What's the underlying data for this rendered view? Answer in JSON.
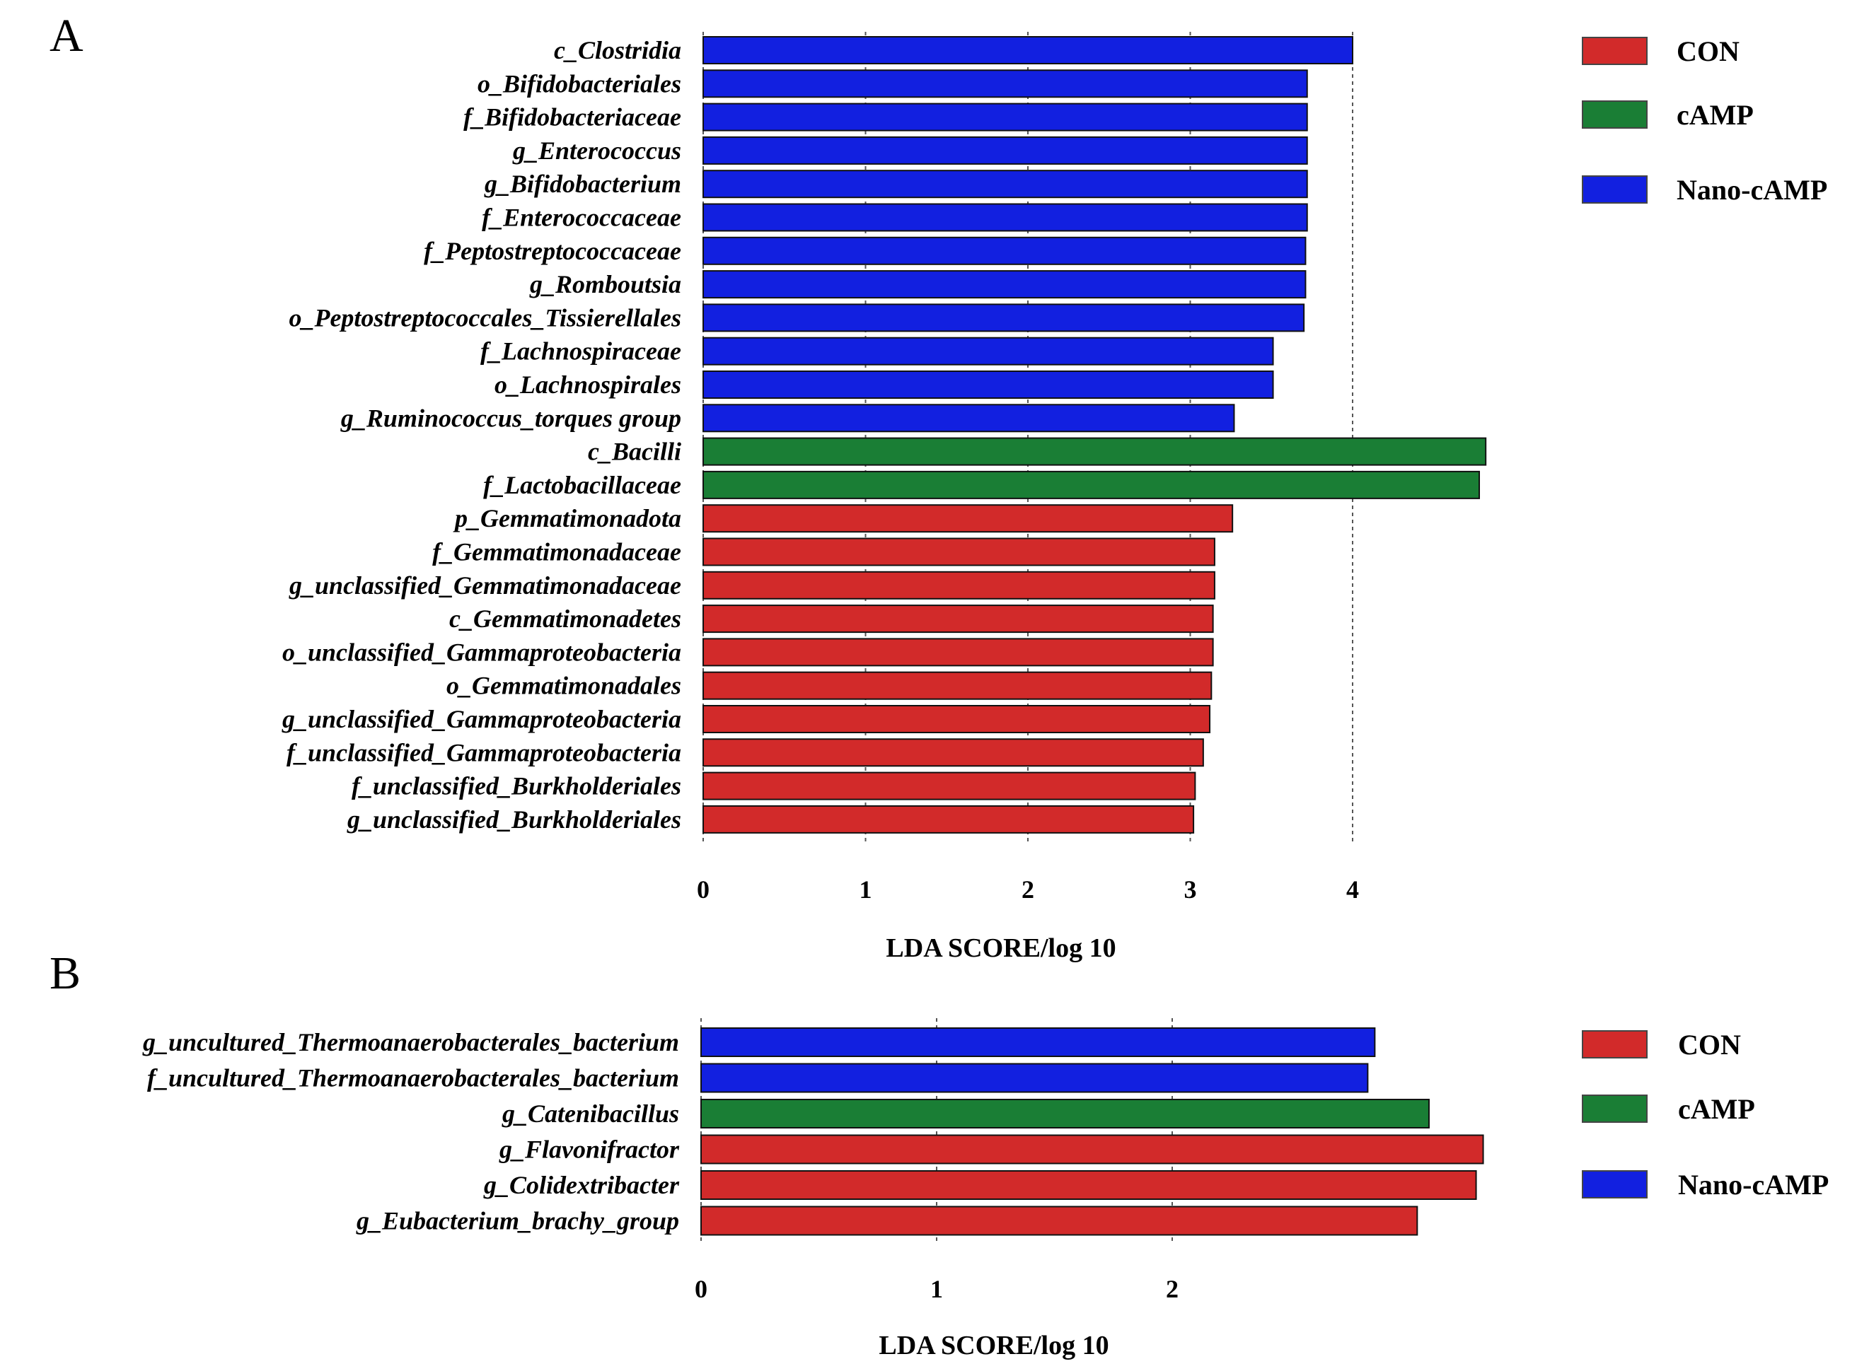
{
  "colors": {
    "CON": "#d22a2a",
    "cAMP": "#1a7e35",
    "Nano-cAMP": "#1220e0"
  },
  "chart_data": [
    {
      "panel": "A",
      "type": "bar",
      "orientation": "horizontal",
      "xlabel": "LDA SCORE/log 10",
      "xticks": [
        "0",
        "1",
        "2",
        "3",
        "4"
      ],
      "xlim": [
        0,
        4.9
      ],
      "legend": [
        {
          "label": "CON",
          "group": "CON"
        },
        {
          "label": "cAMP",
          "group": "cAMP"
        },
        {
          "label": "Nano-cAMP",
          "group": "Nano-cAMP"
        }
      ],
      "bars": [
        {
          "label": "c_Clostridia",
          "value": 4.0,
          "group": "Nano-cAMP"
        },
        {
          "label": "o_Bifidobacteriales",
          "value": 3.72,
          "group": "Nano-cAMP"
        },
        {
          "label": "f_Bifidobacteriaceae",
          "value": 3.72,
          "group": "Nano-cAMP"
        },
        {
          "label": "g_Enterococcus",
          "value": 3.72,
          "group": "Nano-cAMP"
        },
        {
          "label": "g_Bifidobacterium",
          "value": 3.72,
          "group": "Nano-cAMP"
        },
        {
          "label": "f_Enterococcaceae",
          "value": 3.72,
          "group": "Nano-cAMP"
        },
        {
          "label": "f_Peptostreptococcaceae",
          "value": 3.71,
          "group": "Nano-cAMP"
        },
        {
          "label": "g_Romboutsia",
          "value": 3.71,
          "group": "Nano-cAMP"
        },
        {
          "label": "o_Peptostreptococcales_Tissierellales",
          "value": 3.7,
          "group": "Nano-cAMP"
        },
        {
          "label": "f_Lachnospiraceae",
          "value": 3.51,
          "group": "Nano-cAMP"
        },
        {
          "label": "o_Lachnospirales",
          "value": 3.51,
          "group": "Nano-cAMP"
        },
        {
          "label": "g_Ruminococcus_torques group",
          "value": 3.27,
          "group": "Nano-cAMP"
        },
        {
          "label": "c_Bacilli",
          "value": 4.82,
          "group": "cAMP"
        },
        {
          "label": "f_Lactobacillaceae",
          "value": 4.78,
          "group": "cAMP"
        },
        {
          "label": "p_Gemmatimonadota",
          "value": 3.26,
          "group": "CON"
        },
        {
          "label": "f_Gemmatimonadaceae",
          "value": 3.15,
          "group": "CON"
        },
        {
          "label": "g_unclassified_Gemmatimonadaceae",
          "value": 3.15,
          "group": "CON"
        },
        {
          "label": "c_Gemmatimonadetes",
          "value": 3.14,
          "group": "CON"
        },
        {
          "label": "o_unclassified_Gammaproteobacteria",
          "value": 3.14,
          "group": "CON"
        },
        {
          "label": "o_Gemmatimonadales",
          "value": 3.13,
          "group": "CON"
        },
        {
          "label": "g_unclassified_Gammaproteobacteria",
          "value": 3.12,
          "group": "CON"
        },
        {
          "label": "f_unclassified_Gammaproteobacteria",
          "value": 3.08,
          "group": "CON"
        },
        {
          "label": "f_unclassified_Burkholderiales",
          "value": 3.03,
          "group": "CON"
        },
        {
          "label": "g_unclassified_Burkholderiales",
          "value": 3.02,
          "group": "CON"
        }
      ]
    },
    {
      "panel": "B",
      "type": "bar",
      "orientation": "horizontal",
      "xlabel": "LDA SCORE/log 10",
      "xticks": [
        "0",
        "1",
        "2"
      ],
      "xlim": [
        0,
        3.35
      ],
      "legend": [
        {
          "label": "CON",
          "group": "CON"
        },
        {
          "label": "cAMP",
          "group": "cAMP"
        },
        {
          "label": "Nano-cAMP",
          "group": "Nano-cAMP"
        }
      ],
      "bars": [
        {
          "label": "g_uncultured_Thermoanaerobacterales_bacterium",
          "value": 2.86,
          "group": "Nano-cAMP"
        },
        {
          "label": "f_uncultured_Thermoanaerobacterales_bacterium",
          "value": 2.83,
          "group": "Nano-cAMP"
        },
        {
          "label": "g_Catenibacillus",
          "value": 3.09,
          "group": "cAMP"
        },
        {
          "label": "g_Flavonifractor",
          "value": 3.32,
          "group": "CON"
        },
        {
          "label": "g_Colidextribacter",
          "value": 3.29,
          "group": "CON"
        },
        {
          "label": "g_Eubacterium_brachy_group",
          "value": 3.04,
          "group": "CON"
        }
      ]
    }
  ]
}
